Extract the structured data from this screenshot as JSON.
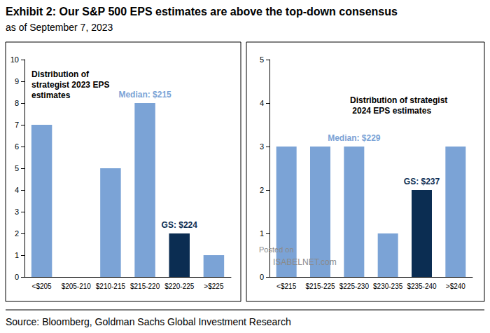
{
  "title": "Exhibit 2: Our S&P 500 EPS estimates are above the top-down consensus",
  "subtitle": "as of September 7, 2023",
  "source": "Source: Bloomberg, Goldman Sachs Global Investment Research",
  "watermark": [
    "Posted on",
    "ISABELNET.com"
  ],
  "chart_data": [
    {
      "type": "bar",
      "title": "Distribution of strategist 2023 EPS estimates",
      "categories": [
        "<$205",
        "$205-210",
        "$210-215",
        "$215-220",
        "$220-225",
        ">$225"
      ],
      "values": [
        7,
        0,
        5,
        8,
        2,
        1
      ],
      "colors": [
        "#7ba3d6",
        "#7ba3d6",
        "#7ba3d6",
        "#7ba3d6",
        "#0b2d52",
        "#7ba3d6"
      ],
      "ylim": [
        0,
        10
      ],
      "yticks": [
        0,
        1,
        2,
        3,
        4,
        5,
        6,
        7,
        8,
        9,
        10
      ],
      "grid": false,
      "annotations": [
        {
          "text": "Median: $215",
          "category": "$215-220",
          "color": "#7ba3d6"
        },
        {
          "text": "GS: $224",
          "category": "$220-225",
          "color": "#0b2d52"
        }
      ]
    },
    {
      "type": "bar",
      "title": "Distribution of strategist 2024 EPS estimates",
      "categories": [
        "<$215",
        "$215-225",
        "$225-230",
        "$230-235",
        "$235-240",
        ">$240"
      ],
      "values": [
        3,
        3,
        3,
        1,
        2,
        3
      ],
      "colors": [
        "#7ba3d6",
        "#7ba3d6",
        "#7ba3d6",
        "#7ba3d6",
        "#0b2d52",
        "#7ba3d6"
      ],
      "ylim": [
        0,
        5
      ],
      "yticks": [
        0,
        1,
        2,
        3,
        4,
        5
      ],
      "grid": false,
      "annotations": [
        {
          "text": "Median: $229",
          "category": "$225-230",
          "color": "#7ba3d6"
        },
        {
          "text": "GS: $237",
          "category": "$235-240",
          "color": "#0b2d52"
        }
      ]
    }
  ]
}
